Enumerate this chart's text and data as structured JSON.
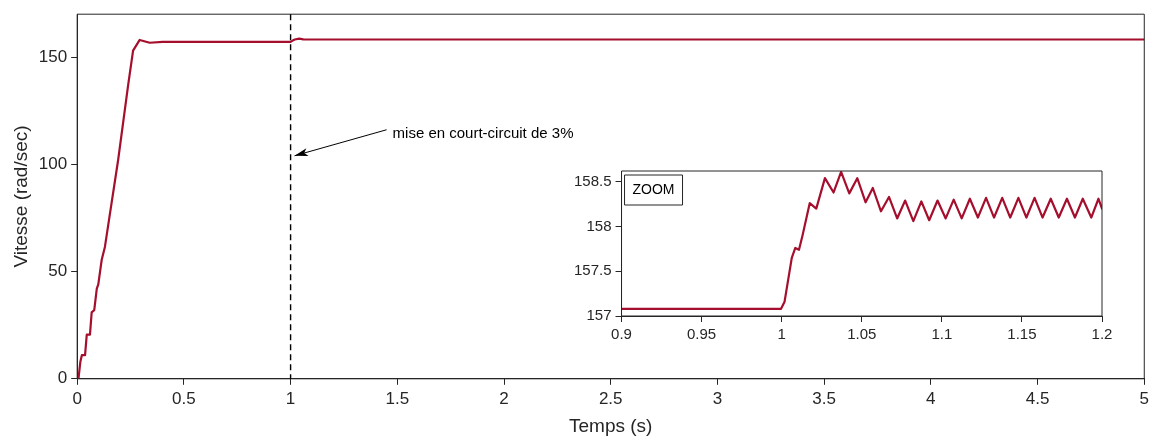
{
  "chart_data": [
    {
      "type": "line",
      "xlabel": "Temps (s)",
      "ylabel": "Vitesse (rad/sec)",
      "xlim": [
        0,
        5
      ],
      "ylim": [
        0,
        170
      ],
      "xticks": [
        0,
        0.5,
        1,
        1.5,
        2,
        2.5,
        3,
        3.5,
        4,
        4.5,
        5
      ],
      "yticks": [
        0,
        50,
        100,
        150
      ],
      "marker": "none",
      "series": [
        {
          "color": "#a50f2d",
          "x": [
            0,
            0.006,
            0.015,
            0.022,
            0.037,
            0.045,
            0.06,
            0.068,
            0.08,
            0.092,
            0.099,
            0.115,
            0.13,
            0.146,
            0.192,
            0.239,
            0.262,
            0.293,
            0.34,
            0.4,
            1.0,
            1.01,
            1.02,
            1.04,
            1.06,
            1.1,
            2,
            3,
            4,
            5
          ],
          "values": [
            0,
            0,
            8,
            11,
            11,
            20.6,
            20.6,
            31,
            32,
            42,
            44,
            55.5,
            61.5,
            72,
            102,
            137,
            153,
            158,
            156.7,
            157.1,
            157.1,
            157.7,
            158.2,
            158.6,
            158.3,
            158.2,
            158.2,
            158.2,
            158.2,
            158.2
          ]
        }
      ],
      "ref_lines": [
        {
          "axis": "x",
          "value": 1,
          "color": "#000000",
          "line_style": "dashed"
        }
      ],
      "annotations": [
        {
          "text": "mise en court-circuit de 3%",
          "x": 1,
          "y": 104
        }
      ]
    },
    {
      "type": "line",
      "xlim": [
        0.9,
        1.2
      ],
      "ylim": [
        157,
        158.62
      ],
      "xticks": [
        0.9,
        0.95,
        1,
        1.05,
        1.1,
        1.15,
        1.2
      ],
      "yticks": [
        157,
        157.5,
        158,
        158.5
      ],
      "marker": "none",
      "series": [
        {
          "color": "#a50f2d",
          "x": [
            0.9,
            0.9996,
            1.0018,
            1.0063,
            1.0085,
            1.0108,
            1.013,
            1.0175,
            1.0216,
            1.027,
            1.0324,
            1.0371,
            1.0422,
            1.0472,
            1.0524,
            1.0569,
            1.062,
            1.067,
            1.0721,
            1.0771,
            1.0822,
            1.0872,
            1.0921,
            1.0973,
            1.1024,
            1.1074,
            1.1124,
            1.1175,
            1.1225,
            1.1276,
            1.1326,
            1.1377,
            1.1427,
            1.1478,
            1.1528,
            1.1579,
            1.1629,
            1.168,
            1.173,
            1.1781,
            1.1831,
            1.188,
            1.1933,
            1.1978,
            1.2
          ],
          "values": [
            157.08,
            157.08,
            157.16,
            157.65,
            157.76,
            157.74,
            157.9,
            158.26,
            158.2,
            158.54,
            158.38,
            158.61,
            158.37,
            158.54,
            158.27,
            158.43,
            158.17,
            158.33,
            158.09,
            158.29,
            158.06,
            158.28,
            158.07,
            158.29,
            158.09,
            158.3,
            158.09,
            158.31,
            158.1,
            158.32,
            158.1,
            158.32,
            158.1,
            158.32,
            158.1,
            158.32,
            158.1,
            158.31,
            158.1,
            158.31,
            158.1,
            158.31,
            158.1,
            158.31,
            158.2
          ]
        }
      ],
      "annotations": [
        "ZOOM"
      ]
    }
  ]
}
